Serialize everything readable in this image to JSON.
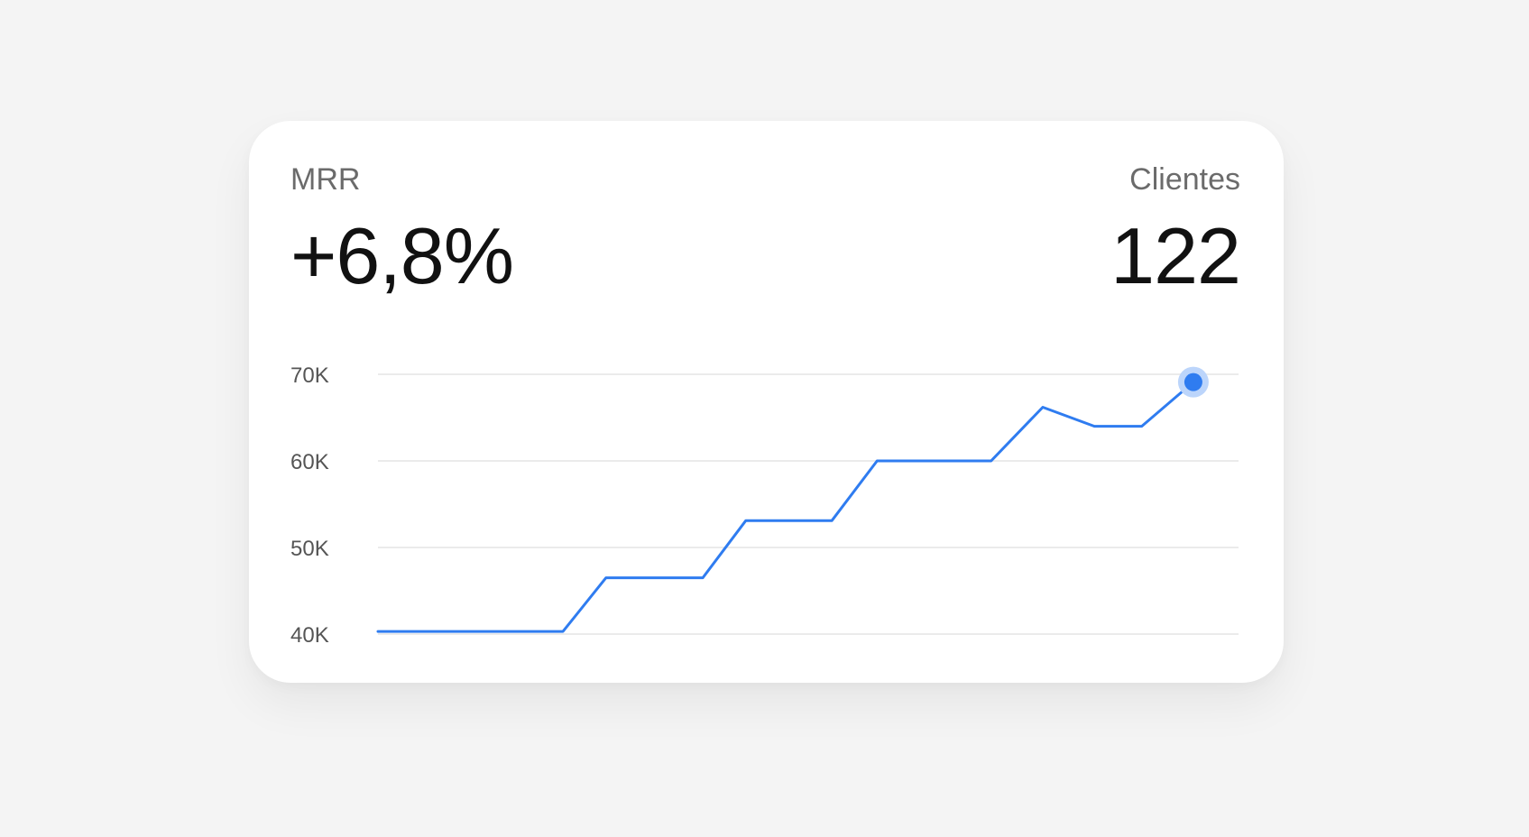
{
  "card": {
    "left_kpi": {
      "label": "MRR",
      "value": "+6,8%"
    },
    "right_kpi": {
      "label": "Clientes",
      "value": "122"
    }
  },
  "colors": {
    "line": "#2f7cf0",
    "marker": "#2f7cf0",
    "marker_halo": "#bcd5fb",
    "grid": "#ebebeb",
    "background": "#f4f4f4",
    "card": "#ffffff"
  },
  "chart_data": {
    "type": "line",
    "title": "",
    "xlabel": "",
    "ylabel": "",
    "ylim": [
      40000,
      70000
    ],
    "yticks": [
      {
        "value": 70000,
        "label": "70K"
      },
      {
        "value": 60000,
        "label": "60K"
      },
      {
        "value": 50000,
        "label": "50K"
      },
      {
        "value": 40000,
        "label": "40K"
      }
    ],
    "grid": true,
    "legend": "none",
    "series": [
      {
        "x": [
          0,
          8.6,
          10.6,
          15.1,
          17.1,
          21.1,
          23.2,
          28.5,
          30.9,
          33.3,
          35.5,
          37.9
        ],
        "values": [
          40300,
          40300,
          46500,
          46500,
          53100,
          53100,
          60000,
          60000,
          66200,
          64000,
          64000,
          69100
        ],
        "highlight_last": true
      }
    ]
  }
}
